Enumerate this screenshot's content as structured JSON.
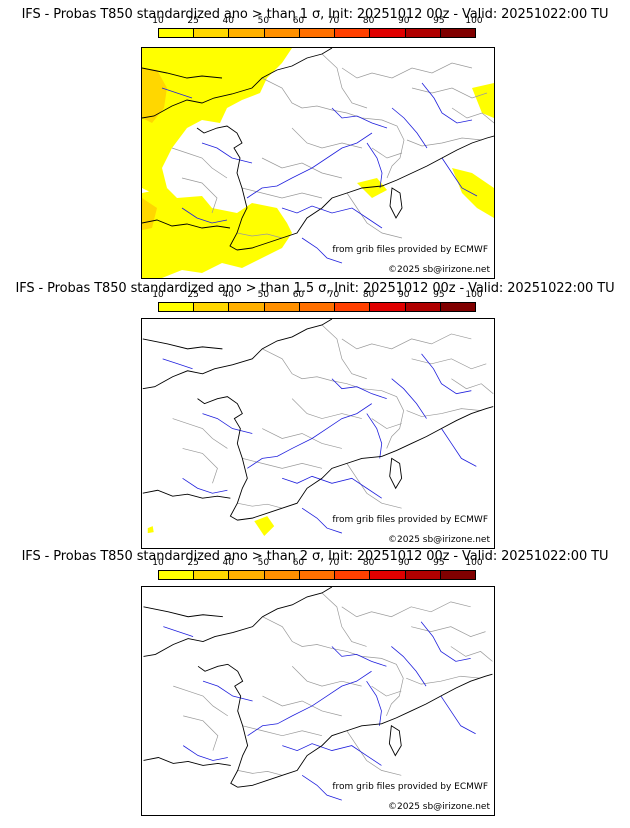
{
  "panels": [
    {
      "title": "IFS - Probas T850  standardized ano > than 1 σ, Init: 20251012 00z - Valid: 20251022:00 TU",
      "coverage": "high"
    },
    {
      "title": "IFS - Probas T850  standardized ano > than 1.5 σ, Init: 20251012 00z - Valid: 20251022:00 TU",
      "coverage": "low"
    },
    {
      "title": "IFS - Probas T850  standardized ano > than 2 σ, Init: 20251012 00z - Valid: 20251022:00 TU",
      "coverage": "none"
    }
  ],
  "legend": {
    "ticks": [
      "10",
      "25",
      "40",
      "50",
      "60",
      "70",
      "80",
      "90",
      "95",
      "100"
    ],
    "colors": [
      "#ffff00",
      "#ffd700",
      "#ffb000",
      "#ff9000",
      "#ff7000",
      "#ff4000",
      "#e00000",
      "#b00000",
      "#800000"
    ]
  },
  "credit": "from grib files provided by ECMWF",
  "copyright": "©2025 sb@irizone.net",
  "colors": {
    "coastline": "#000000",
    "borders": "#9a9a9a",
    "rivers": "#2020dd",
    "probability_fill": "#ffff00",
    "probability_fill_higher": "#ffd700"
  }
}
